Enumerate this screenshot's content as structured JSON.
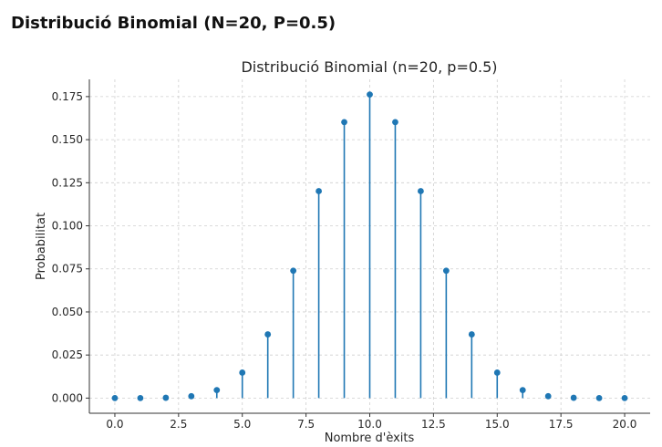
{
  "page": {
    "heading": "Distribució Binomial (N=20, P=0.5)"
  },
  "chart_data": {
    "type": "stem",
    "title": "Distribució Binomial (n=20, p=0.5)",
    "xlabel": "Nombre d'èxits",
    "ylabel": "Probabilitat",
    "xlim": [
      -1,
      21
    ],
    "ylim": [
      -0.0088,
      0.185
    ],
    "x_ticks": [
      0,
      2.5,
      5,
      7.5,
      10,
      12.5,
      15,
      17.5,
      20
    ],
    "x_tick_labels": [
      "0.0",
      "2.5",
      "5.0",
      "7.5",
      "10.0",
      "12.5",
      "15.0",
      "17.5",
      "20.0"
    ],
    "y_ticks": [
      0,
      0.025,
      0.05,
      0.075,
      0.1,
      0.125,
      0.15,
      0.175
    ],
    "y_tick_labels": [
      "0.000",
      "0.025",
      "0.050",
      "0.075",
      "0.100",
      "0.125",
      "0.150",
      "0.175"
    ],
    "grid": true,
    "grid_style": "dashed",
    "color": "#1f77b4",
    "x": [
      0,
      1,
      2,
      3,
      4,
      5,
      6,
      7,
      8,
      9,
      10,
      11,
      12,
      13,
      14,
      15,
      16,
      17,
      18,
      19,
      20
    ],
    "values": [
      1e-06,
      1.9e-05,
      0.000181,
      0.001087,
      0.004621,
      0.014786,
      0.036964,
      0.073929,
      0.120134,
      0.160179,
      0.176197,
      0.160179,
      0.120134,
      0.073929,
      0.036964,
      0.014786,
      0.004621,
      0.001087,
      0.000181,
      1.9e-05,
      1e-06
    ]
  }
}
